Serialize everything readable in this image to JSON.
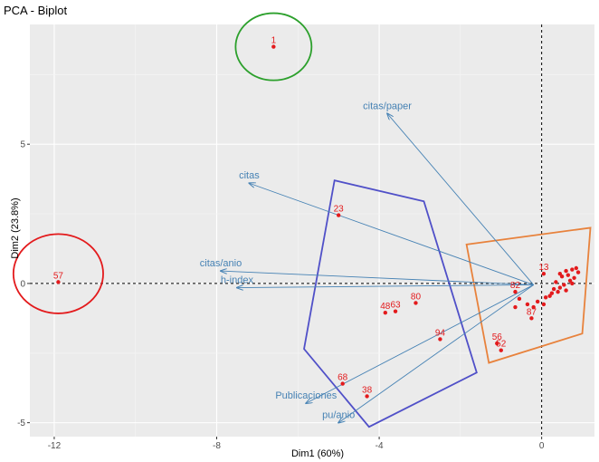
{
  "chart_data": {
    "type": "scatter",
    "title": "PCA - Biplot",
    "xlabel": "Dim1 (60%)",
    "ylabel": "Dim2 (23.8%)",
    "xlim": [
      -12.6,
      1.3
    ],
    "ylim": [
      -5.5,
      9.3
    ],
    "xticks": [
      -12,
      -8,
      -4,
      0
    ],
    "yticks": [
      -5,
      0,
      5
    ],
    "grid": true,
    "colors": {
      "background": "#ebebeb",
      "grid_major": "#ffffff",
      "points": "#e31a1c",
      "arrows": "#4682b4",
      "hull_blue": "#5050c8",
      "hull_orange": "#e8823c",
      "circle_red": "#e31a1c",
      "circle_green": "#2ca02c"
    },
    "points": [
      {
        "label": "1",
        "x": -6.6,
        "y": 8.5
      },
      {
        "label": "57",
        "x": -11.9,
        "y": 0.05
      },
      {
        "label": "23",
        "x": -5.0,
        "y": 2.45
      },
      {
        "label": "48",
        "x": -3.85,
        "y": -1.05
      },
      {
        "label": "63",
        "x": -3.6,
        "y": -1.0
      },
      {
        "label": "80",
        "x": -3.1,
        "y": -0.7
      },
      {
        "label": "94",
        "x": -2.5,
        "y": -2.0
      },
      {
        "label": "68",
        "x": -4.9,
        "y": -3.6
      },
      {
        "label": "38",
        "x": -4.3,
        "y": -4.05
      },
      {
        "label": "13",
        "x": 0.05,
        "y": 0.35
      },
      {
        "label": "82",
        "x": -0.65,
        "y": -0.3
      },
      {
        "label": "87",
        "x": -0.25,
        "y": -1.25
      },
      {
        "label": "56",
        "x": -1.1,
        "y": -2.15
      },
      {
        "label": "52",
        "x": -1.0,
        "y": -2.4
      },
      {
        "label": "",
        "x": -0.55,
        "y": -0.55
      },
      {
        "label": "",
        "x": -0.65,
        "y": -0.85
      },
      {
        "label": "",
        "x": -0.1,
        "y": -0.65
      },
      {
        "label": "",
        "x": 0.05,
        "y": -0.75
      },
      {
        "label": "",
        "x": 0.1,
        "y": -0.5
      },
      {
        "label": "",
        "x": -0.2,
        "y": -0.85
      },
      {
        "label": "",
        "x": 0.25,
        "y": -0.35
      },
      {
        "label": "",
        "x": 0.35,
        "y": 0.05
      },
      {
        "label": "",
        "x": 0.45,
        "y": -0.15
      },
      {
        "label": "",
        "x": 0.5,
        "y": 0.25
      },
      {
        "label": "",
        "x": 0.6,
        "y": 0.45
      },
      {
        "label": "",
        "x": 0.75,
        "y": 0.5
      },
      {
        "label": "",
        "x": 0.8,
        "y": 0.2
      },
      {
        "label": "",
        "x": 0.7,
        "y": 0.1
      },
      {
        "label": "",
        "x": 0.55,
        "y": -0.05
      },
      {
        "label": "",
        "x": 0.65,
        "y": 0.3
      },
      {
        "label": "",
        "x": 0.9,
        "y": 0.4
      },
      {
        "label": "",
        "x": 0.85,
        "y": 0.55
      },
      {
        "label": "",
        "x": 0.4,
        "y": -0.3
      },
      {
        "label": "",
        "x": 0.3,
        "y": -0.2
      },
      {
        "label": "",
        "x": 0.2,
        "y": -0.45
      },
      {
        "label": "",
        "x": 0.45,
        "y": 0.35
      },
      {
        "label": "",
        "x": 0.6,
        "y": -0.25
      },
      {
        "label": "",
        "x": 0.75,
        "y": 0.0
      },
      {
        "label": "",
        "x": -0.35,
        "y": -0.75
      }
    ],
    "variables": [
      {
        "label": "citas/paper",
        "x": -3.8,
        "y": 6.1
      },
      {
        "label": "citas",
        "x": -7.2,
        "y": 3.6
      },
      {
        "label": "citas/anio",
        "x": -7.9,
        "y": 0.45
      },
      {
        "label": "h-index",
        "x": -7.5,
        "y": -0.15
      },
      {
        "label": "Publicaciones",
        "x": -5.8,
        "y": -4.3
      },
      {
        "label": "pu/anio",
        "x": -5.0,
        "y": -5.0
      }
    ],
    "variable_origin": {
      "x": -0.2,
      "y": -0.05
    },
    "hulls": [
      {
        "color": "#5050c8",
        "points": [
          [
            -5.1,
            3.7
          ],
          [
            -2.9,
            2.95
          ],
          [
            -1.6,
            -3.2
          ],
          [
            -4.25,
            -5.15
          ],
          [
            -5.85,
            -2.35
          ]
        ]
      },
      {
        "color": "#e8823c",
        "points": [
          [
            -1.85,
            1.4
          ],
          [
            1.2,
            2.0
          ],
          [
            1.0,
            -1.8
          ],
          [
            -1.3,
            -2.85
          ]
        ]
      }
    ],
    "circles": [
      {
        "color": "#e31a1c",
        "cx": -11.9,
        "cy": 0.35,
        "r": 0.65
      },
      {
        "color": "#2ca02c",
        "cx": -6.6,
        "cy": 8.5,
        "r": 0.55
      }
    ]
  }
}
